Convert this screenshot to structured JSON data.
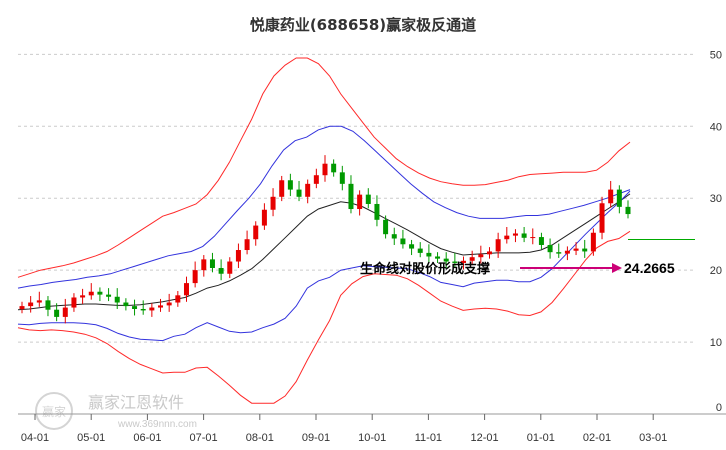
{
  "chart_data": {
    "type": "candlestick",
    "title": "悦康药业(688658)赢家极反通道",
    "x_ticks": [
      "04-01",
      "05-01",
      "06-01",
      "07-01",
      "08-01",
      "09-01",
      "10-01",
      "11-01",
      "12-01",
      "01-01",
      "02-01",
      "03-01"
    ],
    "y_ticks": [
      "0",
      "10",
      "20",
      "30",
      "40",
      "50"
    ],
    "ylim": [
      0,
      52
    ],
    "grid": "horizontal dashed",
    "annotation": "生命线对股价形成支撑",
    "support_value": "24.2665",
    "support_level": 24.27,
    "series": {
      "close": [
        15,
        15.5,
        15.8,
        14.5,
        13.5,
        14.8,
        16.2,
        16.5,
        17,
        16.6,
        16.3,
        15.5,
        15,
        14.6,
        14.4,
        14.8,
        15.1,
        15.5,
        16.5,
        18.2,
        20,
        21.5,
        20.3,
        19.5,
        21.2,
        22.8,
        24.3,
        26.2,
        28.4,
        30.2,
        32.5,
        31.2,
        30.2,
        32,
        33.2,
        34.8,
        33.6,
        32,
        28.5,
        30.5,
        29.2,
        27,
        25,
        24.4,
        23.6,
        23,
        22.4,
        21.9,
        21.6,
        21.2,
        21,
        21.3,
        21.8,
        22.2,
        22.6,
        24.3,
        24.8,
        25.1,
        24.5,
        24.6,
        23.5,
        22.5,
        22.3,
        22.7,
        23,
        22.6,
        25.2,
        29.3,
        31.2,
        28.8,
        27.8
      ],
      "upper_band": [
        19,
        19.5,
        20,
        20.3,
        20.6,
        21,
        21.5,
        22,
        22.6,
        23.5,
        24.5,
        25.5,
        26.5,
        27.5,
        28,
        28.6,
        29.2,
        30.5,
        32.5,
        35,
        38,
        41,
        44.5,
        47,
        48.5,
        49.5,
        49.5,
        48.7,
        47,
        44.5,
        42.5,
        40.5,
        38.5,
        37,
        35.5,
        34.4,
        33.5,
        32.8,
        32.3,
        32,
        31.8,
        31.8,
        31.9,
        32.2,
        32.5,
        33,
        33.3,
        33.4,
        33.5,
        33.6,
        33.6,
        33.6,
        33.9,
        35,
        36.6,
        37.8
      ],
      "middle_upper": [
        17.5,
        17.8,
        18,
        18.3,
        18.5,
        18.7,
        19,
        19.2,
        19.5,
        20,
        20.5,
        21,
        21.5,
        22,
        22.3,
        22.6,
        23.3,
        24.7,
        26.5,
        28.3,
        30,
        32,
        34.5,
        36.7,
        38,
        38.5,
        39.5,
        40,
        40,
        39.3,
        38,
        36.5,
        35,
        33.5,
        32,
        30.7,
        29.5,
        28.7,
        28,
        27.5,
        27.2,
        27.2,
        27.2,
        27.4,
        27.6,
        27.6,
        27.8,
        28.2,
        28.6,
        29,
        29.5,
        30,
        30.6,
        31.2
      ],
      "lifeline": [
        14.5,
        14.6,
        14.8,
        15,
        15.1,
        15.2,
        15.3,
        15.3,
        15.2,
        15.1,
        15.1,
        15.2,
        15.4,
        15.6,
        15.9,
        16.2,
        16.8,
        17.5,
        17.9,
        18.5,
        19.3,
        20.2,
        21.5,
        23,
        24.5,
        26,
        27.5,
        28.5,
        29,
        29.5,
        29.3,
        28.8,
        28,
        27.2,
        26.4,
        25.6,
        24.7,
        23.8,
        23,
        22.5,
        22.1,
        22.2,
        22.3,
        22.4,
        22.4,
        22.4,
        22.5,
        22.8,
        23.5,
        24.5,
        25.5,
        26.5,
        27.5,
        28.5,
        29.5,
        30.6
      ]
    },
    "colors": {
      "up": "#e60000",
      "down": "#009900",
      "upper_band": "#ff2a2a",
      "middle_band": "#3333dd",
      "lifeline": "#222222",
      "support_line": "#00aa00",
      "arrow": "#cc0077"
    }
  },
  "watermark": {
    "logo_text": "赢家",
    "name": "赢家江恩软件",
    "url": "www.369nnn.com"
  }
}
